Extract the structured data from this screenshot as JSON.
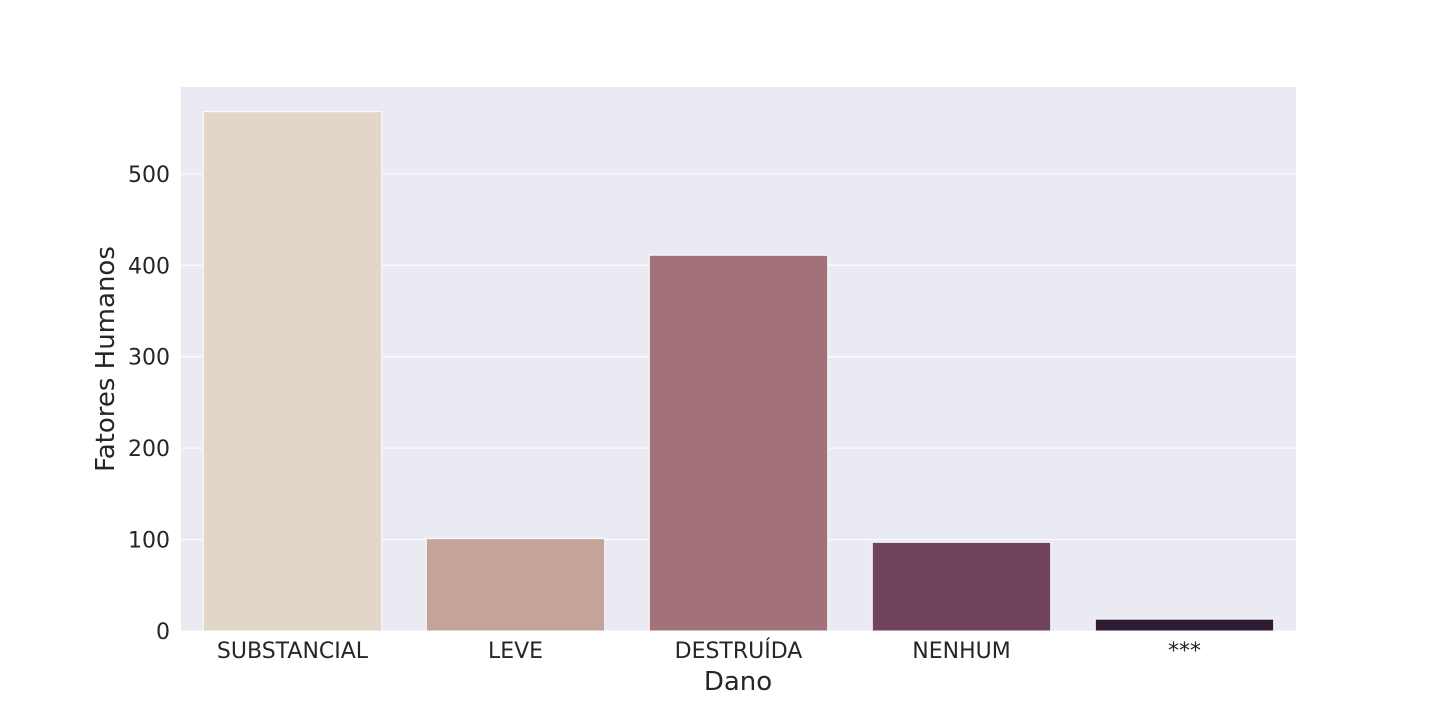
{
  "chart_data": {
    "type": "bar",
    "categories": [
      "SUBSTANCIAL",
      "LEVE",
      "DESTRUÍDA",
      "NENHUM",
      "***"
    ],
    "values": [
      568,
      101,
      411,
      97,
      13
    ],
    "colors": [
      "#e2d6c6",
      "#c4a398",
      "#a37179",
      "#71445c",
      "#2e1a32"
    ],
    "xlabel": "Dano",
    "ylabel": "Fatores Humanos",
    "ylim": [
      0,
      595
    ],
    "yticks": [
      0,
      100,
      200,
      300,
      400,
      500
    ],
    "plot_background": "#eaeaf2",
    "grid": true
  }
}
